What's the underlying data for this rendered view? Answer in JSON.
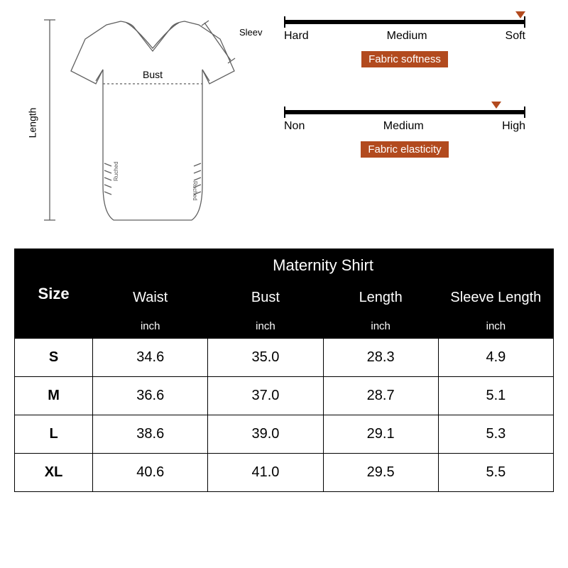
{
  "diagram": {
    "length_label": "Length",
    "sleeve_label": "Sleeve Length",
    "bust_label": "Bust",
    "ruched_label": "Ruched",
    "stroke": "#606060"
  },
  "scales": {
    "softness": {
      "labels": [
        "Hard",
        "Medium",
        "Soft"
      ],
      "badge": "Fabric softness",
      "marker_pct": 98,
      "marker_color": "#b24a1e",
      "badge_bg": "#b24a1e"
    },
    "elasticity": {
      "labels": [
        "Non",
        "Medium",
        "High"
      ],
      "badge": "Fabric elasticity",
      "marker_pct": 88,
      "marker_color": "#b24a1e",
      "badge_bg": "#b24a1e"
    }
  },
  "table": {
    "size_header": "Size",
    "title": "Maternity Shirt",
    "columns": [
      "Waist",
      "Bust",
      "Length",
      "Sleeve Length"
    ],
    "unit": "inch",
    "rows": [
      {
        "size": "S",
        "vals": [
          "34.6",
          "35.0",
          "28.3",
          "4.9"
        ]
      },
      {
        "size": "M",
        "vals": [
          "36.6",
          "37.0",
          "28.7",
          "5.1"
        ]
      },
      {
        "size": "L",
        "vals": [
          "38.6",
          "39.0",
          "29.1",
          "5.3"
        ]
      },
      {
        "size": "XL",
        "vals": [
          "40.6",
          "41.0",
          "29.5",
          "5.5"
        ]
      }
    ]
  }
}
